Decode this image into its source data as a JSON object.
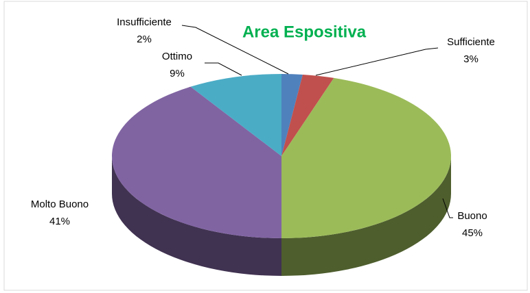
{
  "chart_data": {
    "type": "pie3d",
    "title": "Area Espositiva",
    "categories": [
      "Insufficiente",
      "Sufficiente",
      "Buono",
      "Molto Buono",
      "Ottimo"
    ],
    "values": [
      2,
      3,
      45,
      41,
      9
    ],
    "value_labels": [
      "2%",
      "3%",
      "45%",
      "41%",
      "9%"
    ],
    "colors": [
      "#4f81bd",
      "#c0504d",
      "#9bbb59",
      "#8064a2",
      "#4bacc6"
    ]
  }
}
